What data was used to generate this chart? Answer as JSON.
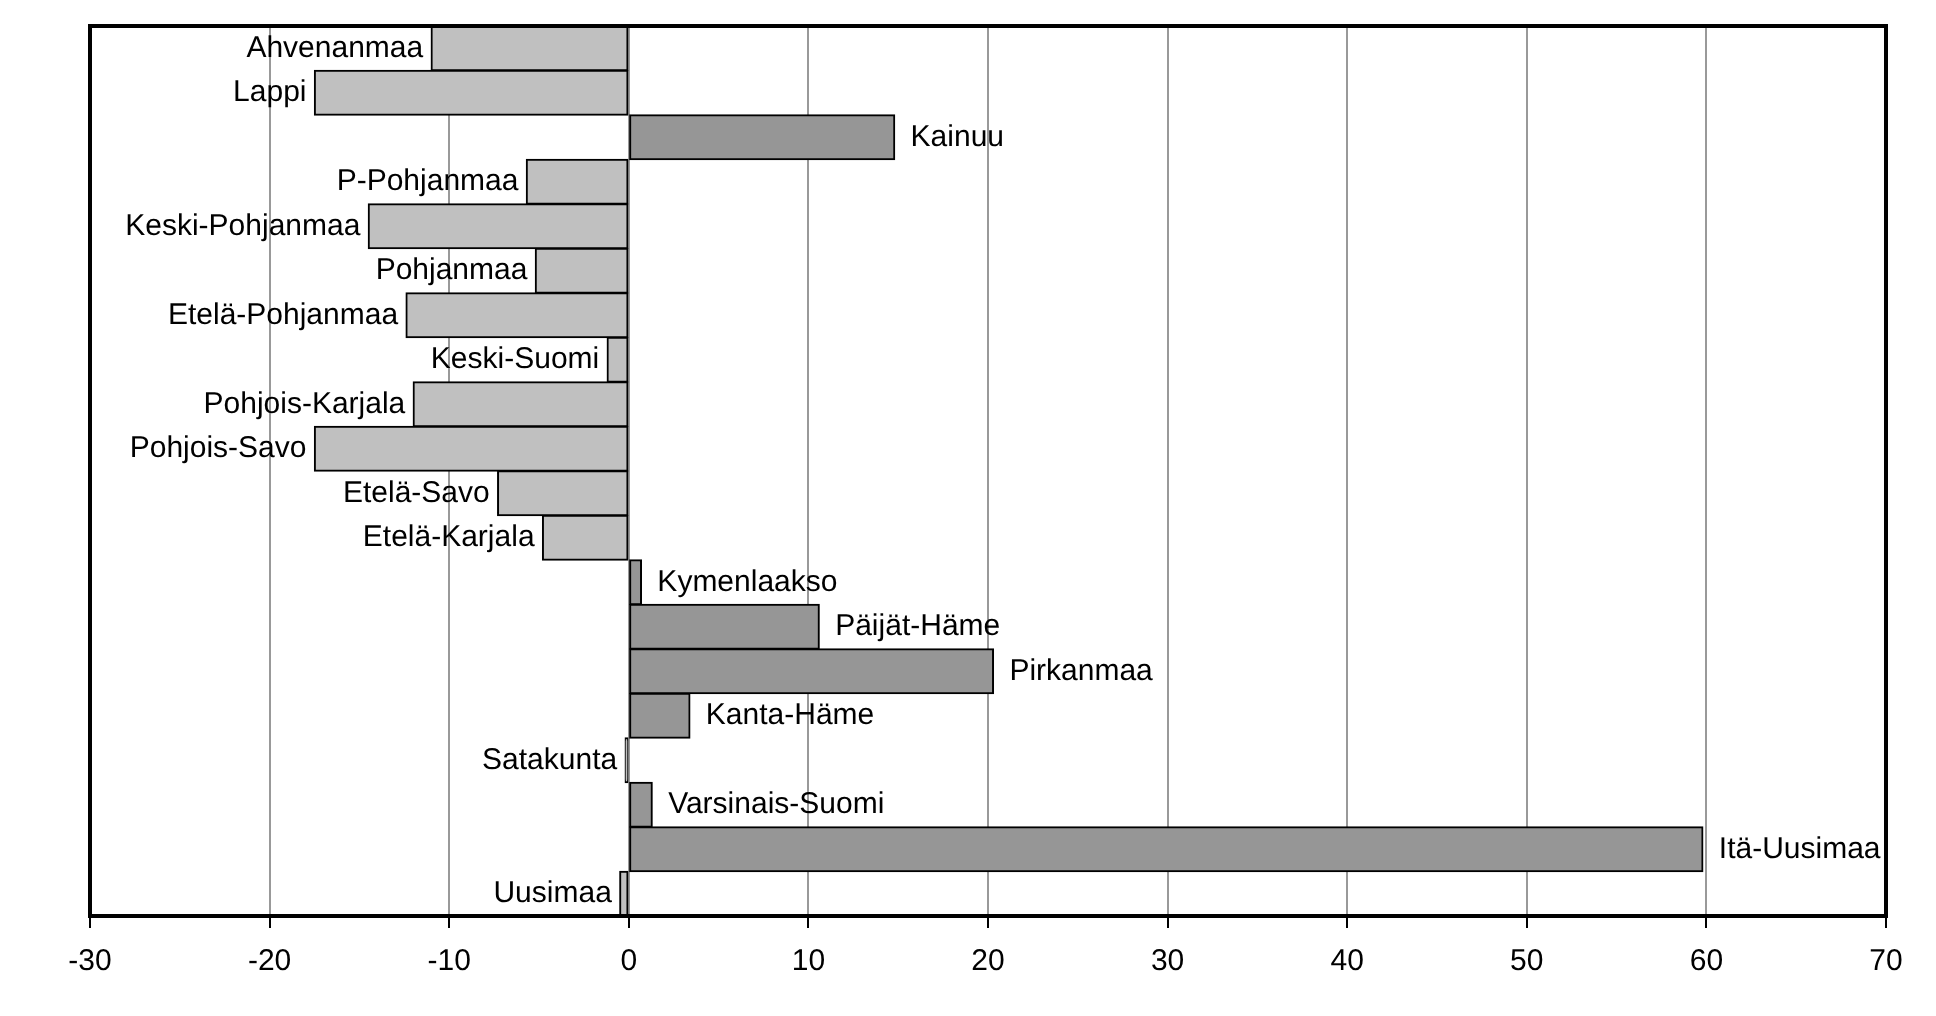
{
  "chart_data": {
    "type": "bar",
    "orientation": "horizontal",
    "categories": [
      "Ahvenanmaa",
      "Lappi",
      "Kainuu",
      "P-Pohjanmaa",
      "Keski-Pohjanmaa",
      "Pohjanmaa",
      "Etelä-Pohjanmaa",
      "Keski-Suomi",
      "Pohjois-Karjala",
      "Pohjois-Savo",
      "Etelä-Savo",
      "Etelä-Karjala",
      "Kymenlaakso",
      "Päijät-Häme",
      "Pirkanmaa",
      "Kanta-Häme",
      "Satakunta",
      "Varsinais-Suomi",
      "Itä-Uusimaa",
      "Uusimaa"
    ],
    "values": [
      -11.0,
      -17.5,
      14.8,
      -5.7,
      -14.5,
      -5.2,
      -12.4,
      -1.2,
      -12.0,
      -17.5,
      -7.3,
      -4.8,
      0.7,
      10.6,
      20.3,
      3.4,
      -0.2,
      1.3,
      59.8,
      -0.5
    ],
    "colors": [
      "#c0c0c0",
      "#c0c0c0",
      "#969696",
      "#c0c0c0",
      "#c0c0c0",
      "#c0c0c0",
      "#c0c0c0",
      "#c0c0c0",
      "#c0c0c0",
      "#c0c0c0",
      "#c0c0c0",
      "#c0c0c0",
      "#969696",
      "#969696",
      "#969696",
      "#969696",
      "#c0c0c0",
      "#969696",
      "#969696",
      "#c0c0c0"
    ],
    "xlim": [
      -30,
      70
    ],
    "xticks": [
      -30,
      -20,
      -10,
      0,
      10,
      20,
      30,
      40,
      50,
      60,
      70
    ],
    "grid": "x",
    "legend": false
  }
}
